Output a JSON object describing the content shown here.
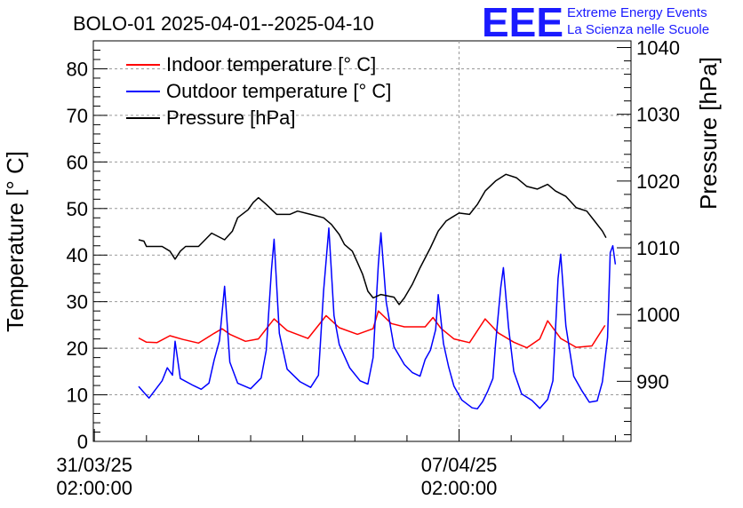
{
  "chart_data": {
    "type": "line",
    "title": "BOLO-01 2025-04-01--2025-04-10",
    "ylabel": "Temperature [° C]",
    "y2label": "Pressure [hPa]",
    "xlabel": "",
    "ylim": [
      0,
      86
    ],
    "y2lim": [
      981,
      1041
    ],
    "x_ticks": [
      {
        "line1": "31/03/25",
        "line2": "02:00:00",
        "day": 0
      },
      {
        "line1": "07/04/25",
        "line2": "02:00:00",
        "day": 7
      }
    ],
    "y_ticks": [
      0,
      10,
      20,
      30,
      40,
      50,
      60,
      70,
      80
    ],
    "y2_ticks": [
      990,
      1000,
      1010,
      1020,
      1030,
      1040
    ],
    "xlim_days": [
      -0.02,
      10.3
    ],
    "grid": true,
    "legend_position": "top-left",
    "series": [
      {
        "name": "Indoor temperature [° C]",
        "axis": "left",
        "color": "#ff0000",
        "points": [
          [
            0.85,
            22.2
          ],
          [
            1.0,
            21.3
          ],
          [
            1.2,
            21.2
          ],
          [
            1.45,
            22.7
          ],
          [
            1.7,
            21.9
          ],
          [
            2.0,
            21.1
          ],
          [
            2.3,
            23.2
          ],
          [
            2.45,
            24.2
          ],
          [
            2.6,
            23.0
          ],
          [
            2.9,
            21.5
          ],
          [
            3.15,
            22.0
          ],
          [
            3.45,
            26.3
          ],
          [
            3.7,
            23.8
          ],
          [
            4.1,
            22.1
          ],
          [
            4.45,
            27.0
          ],
          [
            4.7,
            24.4
          ],
          [
            5.05,
            23.0
          ],
          [
            5.35,
            24.2
          ],
          [
            5.45,
            28.0
          ],
          [
            5.7,
            25.3
          ],
          [
            5.95,
            24.6
          ],
          [
            6.35,
            24.6
          ],
          [
            6.5,
            26.6
          ],
          [
            6.65,
            24.3
          ],
          [
            6.9,
            22.0
          ],
          [
            7.2,
            21.2
          ],
          [
            7.5,
            26.3
          ],
          [
            7.75,
            23.3
          ],
          [
            8.05,
            21.3
          ],
          [
            8.3,
            20.1
          ],
          [
            8.55,
            22.0
          ],
          [
            8.7,
            25.9
          ],
          [
            8.95,
            22.1
          ],
          [
            9.25,
            20.2
          ],
          [
            9.55,
            20.5
          ],
          [
            9.8,
            24.9
          ]
        ]
      },
      {
        "name": "Outdoor temperature [° C]",
        "axis": "left",
        "color": "#0000ff",
        "points": [
          [
            0.85,
            11.8
          ],
          [
            0.95,
            10.5
          ],
          [
            1.05,
            9.3
          ],
          [
            1.15,
            10.8
          ],
          [
            1.3,
            13.0
          ],
          [
            1.4,
            15.8
          ],
          [
            1.5,
            14.2
          ],
          [
            1.55,
            21.5
          ],
          [
            1.65,
            13.5
          ],
          [
            1.9,
            12.0
          ],
          [
            2.05,
            11.2
          ],
          [
            2.2,
            12.5
          ],
          [
            2.3,
            17.5
          ],
          [
            2.4,
            21.6
          ],
          [
            2.5,
            33.3
          ],
          [
            2.6,
            17.0
          ],
          [
            2.75,
            12.5
          ],
          [
            3.0,
            11.3
          ],
          [
            3.2,
            13.6
          ],
          [
            3.3,
            19.6
          ],
          [
            3.4,
            37.0
          ],
          [
            3.45,
            43.4
          ],
          [
            3.55,
            23.2
          ],
          [
            3.7,
            15.5
          ],
          [
            3.95,
            12.8
          ],
          [
            4.15,
            11.6
          ],
          [
            4.3,
            14.2
          ],
          [
            4.4,
            32.3
          ],
          [
            4.5,
            45.8
          ],
          [
            4.6,
            27.0
          ],
          [
            4.7,
            20.8
          ],
          [
            4.9,
            15.8
          ],
          [
            5.1,
            13.0
          ],
          [
            5.25,
            12.3
          ],
          [
            5.35,
            18.0
          ],
          [
            5.45,
            38.0
          ],
          [
            5.5,
            44.8
          ],
          [
            5.6,
            30.0
          ],
          [
            5.75,
            20.3
          ],
          [
            5.95,
            16.5
          ],
          [
            6.1,
            14.8
          ],
          [
            6.25,
            14.0
          ],
          [
            6.35,
            17.6
          ],
          [
            6.45,
            19.6
          ],
          [
            6.55,
            24.0
          ],
          [
            6.6,
            31.5
          ],
          [
            6.7,
            21.0
          ],
          [
            6.8,
            16.0
          ],
          [
            6.9,
            11.9
          ],
          [
            7.05,
            8.9
          ],
          [
            7.25,
            7.2
          ],
          [
            7.35,
            7.0
          ],
          [
            7.45,
            8.5
          ],
          [
            7.55,
            10.8
          ],
          [
            7.65,
            13.5
          ],
          [
            7.7,
            21.0
          ],
          [
            7.8,
            33.0
          ],
          [
            7.85,
            37.3
          ],
          [
            7.95,
            24.5
          ],
          [
            8.05,
            15.0
          ],
          [
            8.2,
            10.2
          ],
          [
            8.4,
            8.8
          ],
          [
            8.55,
            7.1
          ],
          [
            8.7,
            9.0
          ],
          [
            8.8,
            13.0
          ],
          [
            8.9,
            35.0
          ],
          [
            8.95,
            40.2
          ],
          [
            9.05,
            24.8
          ],
          [
            9.2,
            14.0
          ],
          [
            9.35,
            11.0
          ],
          [
            9.5,
            8.4
          ],
          [
            9.65,
            8.7
          ],
          [
            9.75,
            12.8
          ],
          [
            9.85,
            22.3
          ],
          [
            9.9,
            40.5
          ],
          [
            9.95,
            42.0
          ],
          [
            10.0,
            38.0
          ]
        ]
      },
      {
        "name": "Pressure [hPa]",
        "axis": "right",
        "color": "#000000",
        "points": [
          [
            0.85,
            1011.2
          ],
          [
            0.95,
            1011.0
          ],
          [
            1.0,
            1010.2
          ],
          [
            1.3,
            1010.2
          ],
          [
            1.45,
            1009.5
          ],
          [
            1.55,
            1008.3
          ],
          [
            1.65,
            1009.5
          ],
          [
            1.75,
            1010.2
          ],
          [
            2.0,
            1010.2
          ],
          [
            2.1,
            1011.0
          ],
          [
            2.25,
            1012.2
          ],
          [
            2.5,
            1011.2
          ],
          [
            2.65,
            1012.5
          ],
          [
            2.75,
            1014.5
          ],
          [
            2.95,
            1015.7
          ],
          [
            3.05,
            1016.8
          ],
          [
            3.15,
            1017.5
          ],
          [
            3.3,
            1016.5
          ],
          [
            3.5,
            1015.0
          ],
          [
            3.75,
            1015.0
          ],
          [
            3.9,
            1015.5
          ],
          [
            4.15,
            1015.0
          ],
          [
            4.4,
            1014.5
          ],
          [
            4.55,
            1013.5
          ],
          [
            4.7,
            1012.0
          ],
          [
            4.8,
            1010.5
          ],
          [
            4.95,
            1009.5
          ],
          [
            5.05,
            1007.8
          ],
          [
            5.15,
            1006.0
          ],
          [
            5.25,
            1003.5
          ],
          [
            5.35,
            1002.5
          ],
          [
            5.5,
            1003.0
          ],
          [
            5.75,
            1002.6
          ],
          [
            5.85,
            1001.5
          ],
          [
            5.95,
            1002.5
          ],
          [
            6.1,
            1004.5
          ],
          [
            6.25,
            1007.0
          ],
          [
            6.45,
            1010.0
          ],
          [
            6.6,
            1012.5
          ],
          [
            6.75,
            1014.0
          ],
          [
            6.85,
            1014.5
          ],
          [
            7.0,
            1015.2
          ],
          [
            7.2,
            1015.0
          ],
          [
            7.35,
            1016.5
          ],
          [
            7.5,
            1018.5
          ],
          [
            7.7,
            1020.0
          ],
          [
            7.9,
            1021.0
          ],
          [
            8.1,
            1020.5
          ],
          [
            8.3,
            1019.2
          ],
          [
            8.5,
            1018.8
          ],
          [
            8.7,
            1019.5
          ],
          [
            8.85,
            1018.5
          ],
          [
            9.05,
            1017.7
          ],
          [
            9.25,
            1016.0
          ],
          [
            9.45,
            1015.5
          ],
          [
            9.6,
            1014.0
          ],
          [
            9.75,
            1012.5
          ],
          [
            9.82,
            1011.5
          ]
        ]
      }
    ]
  },
  "logo": {
    "letters": "EEE",
    "line1": "Extreme Energy Events",
    "line2": "La Scienza nelle Scuole"
  }
}
